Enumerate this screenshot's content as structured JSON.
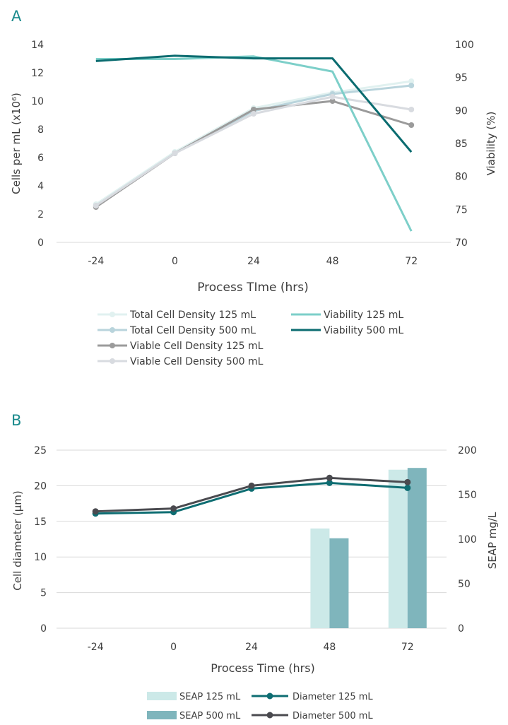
{
  "colors": {
    "panel_letter": "#1a8a8c",
    "axis_text": "#3d3d3d",
    "grid": "#d9d9d9",
    "total125": "#e1f1f0",
    "total500": "#b9d4dc",
    "viable125": "#9b9b9b",
    "viable500": "#d8dbe0",
    "viability125": "#7dcfc9",
    "viability500": "#0b6c70",
    "seap125": "#cce9e8",
    "seap500": "#7fb5bc",
    "diam125": "#0e6d72",
    "diam500": "#4a4a4f"
  },
  "chart_data": [
    {
      "panel": "A",
      "type": "line",
      "categories": [
        "-24",
        "0",
        "24",
        "48",
        "72"
      ],
      "xlabel": "Process TIme (hrs)",
      "ylabel": "Cells per mL (x10⁶)",
      "ylabel2": "Viability (%)",
      "ylim": [
        0,
        14
      ],
      "yticks": [
        "0",
        "2",
        "4",
        "6",
        "8",
        "10",
        "12",
        "14"
      ],
      "ylim2": [
        70,
        100
      ],
      "yticks2": [
        "70",
        "75",
        "80",
        "85",
        "90",
        "95",
        "100"
      ],
      "series": [
        {
          "name": "Total Cell Density 125 mL",
          "axis": "left",
          "color_key": "total125",
          "markers": true,
          "values": [
            2.7,
            6.4,
            9.5,
            10.6,
            11.4
          ]
        },
        {
          "name": "Total Cell Density 500 mL",
          "axis": "left",
          "color_key": "total500",
          "markers": true,
          "values": [
            2.6,
            6.3,
            9.3,
            10.5,
            11.1
          ]
        },
        {
          "name": "Viable Cell Density 125 mL",
          "axis": "left",
          "color_key": "viable125",
          "markers": true,
          "values": [
            2.5,
            6.3,
            9.4,
            10.0,
            8.3
          ]
        },
        {
          "name": "Viable Cell Density 500 mL",
          "axis": "left",
          "color_key": "viable500",
          "markers": true,
          "values": [
            2.6,
            6.3,
            9.1,
            10.3,
            9.4
          ]
        },
        {
          "name": "Viability 125 mL",
          "axis": "right",
          "color_key": "viability125",
          "markers": false,
          "values": [
            97.8,
            97.8,
            98.2,
            95.9,
            71.7
          ]
        },
        {
          "name": "Viability 500 mL",
          "axis": "right",
          "color_key": "viability500",
          "markers": false,
          "values": [
            97.5,
            98.3,
            97.9,
            97.9,
            83.7
          ]
        }
      ],
      "legend": {
        "columns": [
          [
            "Total Cell Density 125 mL",
            "Total Cell Density 500 mL",
            "Viable Cell Density 125 mL",
            "Viable Cell Density 500 mL"
          ],
          [
            "Viability 125 mL",
            "Viability 500 mL"
          ]
        ]
      },
      "grid": false
    },
    {
      "panel": "B",
      "type": "bar",
      "categories": [
        "-24",
        "0",
        "24",
        "48",
        "72"
      ],
      "xlabel": "Process Time (hrs)",
      "ylabel": "Cell diameter (µm)",
      "ylabel2": "SEAP mg/L",
      "ylim": [
        0,
        25
      ],
      "yticks": [
        "0",
        "5",
        "10",
        "15",
        "20",
        "25"
      ],
      "ylim2": [
        0,
        200
      ],
      "yticks2": [
        "0",
        "50",
        "100",
        "150",
        "200"
      ],
      "series": [
        {
          "name": "SEAP 125 mL",
          "type": "bar",
          "axis": "right",
          "color_key": "seap125",
          "values": [
            null,
            null,
            null,
            112,
            178
          ]
        },
        {
          "name": "SEAP 500 mL",
          "type": "bar",
          "axis": "right",
          "color_key": "seap500",
          "values": [
            null,
            null,
            null,
            101,
            180
          ]
        },
        {
          "name": "Diameter 125 mL",
          "type": "line",
          "axis": "left",
          "color_key": "diam125",
          "markers": true,
          "values": [
            16.1,
            16.3,
            19.6,
            20.4,
            19.7
          ]
        },
        {
          "name": "Diameter 500 mL",
          "type": "line",
          "axis": "left",
          "color_key": "diam500",
          "markers": true,
          "values": [
            16.4,
            16.8,
            20.0,
            21.1,
            20.5
          ]
        }
      ],
      "legend": {
        "columns": [
          [
            "SEAP 125 mL",
            "SEAP 500 mL"
          ],
          [
            "Diameter 125 mL",
            "Diameter 500 mL"
          ]
        ]
      },
      "grid": true
    }
  ]
}
